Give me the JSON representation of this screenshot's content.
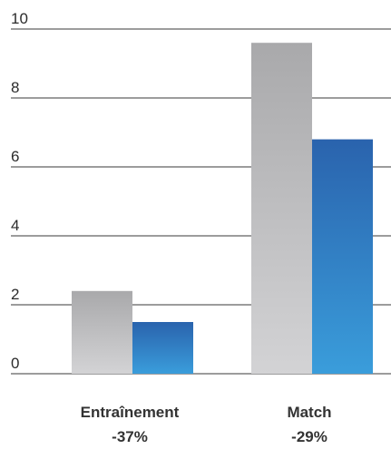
{
  "chart_data": {
    "type": "bar",
    "title": "",
    "xlabel": "",
    "ylabel": "",
    "ylim": [
      0,
      10
    ],
    "yticks": [
      "0",
      "2",
      "4",
      "6",
      "8",
      "10"
    ],
    "grid": true,
    "legend": "none",
    "categories": [
      "Entraînement",
      "Match"
    ],
    "category_notes": [
      "-37%",
      "-29%"
    ],
    "series": [
      {
        "values": [
          2.4,
          9.6
        ],
        "color": "#b4b4b6"
      },
      {
        "values": [
          1.5,
          6.8
        ],
        "color": "#2e7ec9"
      }
    ]
  }
}
